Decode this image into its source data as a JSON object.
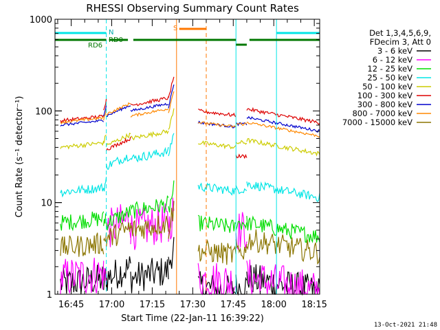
{
  "chart_data": {
    "type": "line",
    "title": "RHESSI Observing Summary Count Rates",
    "xlabel": "Start Time (22-Jan-11 16:39:22)",
    "ylabel": "Count Rate (s⁻¹ detector⁻¹)",
    "ylog": true,
    "ylim": [
      1,
      1000
    ],
    "xlim": [
      "16:39",
      "18:17"
    ],
    "x_ticks": [
      "16:45",
      "17:00",
      "17:15",
      "17:30",
      "17:45",
      "18:00",
      "18:15"
    ],
    "y_ticks": [
      {
        "value": 1,
        "label": "1"
      },
      {
        "value": 10,
        "label": "10"
      },
      {
        "value": 100,
        "label": "100"
      },
      {
        "value": 1000,
        "label": "1000"
      }
    ],
    "legend_header": [
      "Det 1,3,4,5,6,9,",
      "FDecim 3, Att 0"
    ],
    "legend_position": "top-right",
    "series": [
      {
        "name": "3 - 6 keV",
        "color": "#000000"
      },
      {
        "name": "6 - 12 keV",
        "color": "#ff00ff"
      },
      {
        "name": "12 - 25 keV",
        "color": "#00dd00"
      },
      {
        "name": "25 - 50 keV",
        "color": "#00e5e5"
      },
      {
        "name": "50 - 100 keV",
        "color": "#cccc00"
      },
      {
        "name": "100 - 300 keV",
        "color": "#dd0000"
      },
      {
        "name": "300 - 800 keV",
        "color": "#0000cc"
      },
      {
        "name": "800 - 7000 keV",
        "color": "#ff8800"
      },
      {
        "name": "7000 - 15000 keV",
        "color": "#8b7500"
      }
    ],
    "segments": [
      {
        "x0": "16:41",
        "x1": "16:57",
        "vals": [
          1.3,
          1.5,
          6,
          13,
          40,
          78,
          70,
          75,
          3.2
        ],
        "slope": 0.05
      },
      {
        "x0": "16:57",
        "x1": "16:58",
        "vals": [
          1.3,
          1.5,
          6,
          14,
          45,
          105,
          90,
          80,
          3.5
        ],
        "slope": 0.1
      },
      {
        "x0": "16:58",
        "x1": "17:07",
        "vals": [
          1.5,
          5,
          6,
          25,
          42,
          38,
          88,
          92,
          4
        ],
        "slope": 0.12
      },
      {
        "x0": "17:07",
        "x1": "17:21",
        "vals": [
          1.5,
          5,
          8,
          30,
          50,
          115,
          100,
          88,
          5
        ],
        "slope": 0.08
      },
      {
        "x0": "17:21",
        "x1": "17:23",
        "vals": [
          2,
          5,
          8,
          33,
          60,
          135,
          110,
          95,
          5
        ],
        "slope": 0.25
      },
      {
        "x0": "17:32",
        "x1": "17:46",
        "vals": [
          1.2,
          1.5,
          6,
          15,
          45,
          100,
          75,
          75,
          3
        ],
        "slope": -0.05
      },
      {
        "x0": "17:46",
        "x1": "17:50",
        "vals": [
          1.2,
          5,
          6,
          14,
          45,
          32,
          72,
          72,
          3
        ],
        "slope": 0
      },
      {
        "x0": "17:50",
        "x1": "18:17",
        "vals": [
          1.5,
          1.5,
          6,
          16,
          48,
          105,
          85,
          75,
          4
        ],
        "slope": -0.15
      }
    ],
    "instrument_bars": [
      {
        "label": "N",
        "color": "#00e5e5",
        "ranges": [
          [
            "16:39",
            "16:58"
          ],
          [
            "18:01",
            "18:17"
          ]
        ]
      },
      {
        "label": "RD0",
        "color": "#007700",
        "ranges": [
          [
            "16:39",
            "16:58"
          ],
          [
            "16:59",
            "17:06"
          ],
          [
            "17:08",
            "17:46"
          ],
          [
            "17:46",
            "17:50"
          ],
          [
            "17:51",
            "18:17"
          ]
        ]
      },
      {
        "label": "S",
        "color": "#ff7700",
        "ranges": [
          [
            "17:25",
            "17:35"
          ]
        ]
      }
    ],
    "bar_labels": {
      "n": "N",
      "rd0": "RD0",
      "rd6": "RD6",
      "s": "S"
    },
    "vertical_markers": [
      {
        "time": "16:39",
        "color": "#00e5e5",
        "dashed": false
      },
      {
        "time": "16:58",
        "color": "#00e5e5",
        "dashed": true
      },
      {
        "time": "17:24",
        "color": "#ff7700",
        "dashed": false
      },
      {
        "time": "17:35",
        "color": "#ff7700",
        "dashed": true
      },
      {
        "time": "17:46",
        "color": "#00e5e5",
        "dashed": false
      },
      {
        "time": "18:01",
        "color": "#00e5e5",
        "dashed": false
      },
      {
        "time": "18:17",
        "color": "#00e5e5",
        "dashed": true
      }
    ],
    "grid": false
  },
  "footer": {
    "timestamp": "13-Oct-2021 21:48"
  }
}
